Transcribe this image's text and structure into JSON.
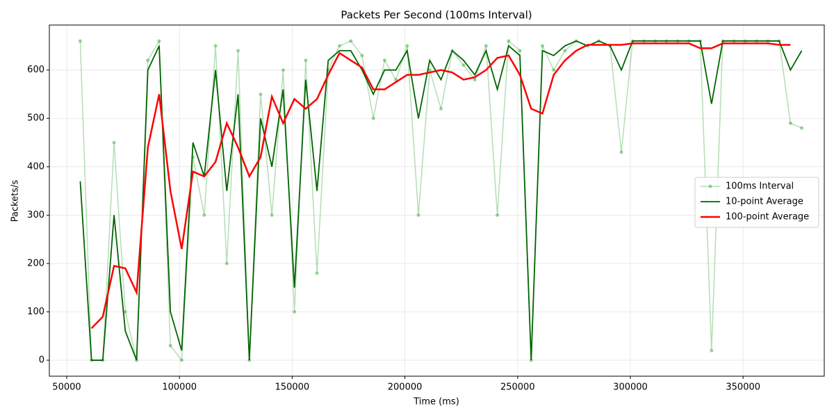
{
  "chart_data": {
    "type": "line",
    "title": "Packets Per Second (100ms Interval)",
    "x_label": "Time (ms)",
    "y_label": "Packets/s",
    "x": [
      56000,
      61000,
      66000,
      71000,
      76000,
      81000,
      86000,
      91000,
      96000,
      101000,
      106000,
      111000,
      116000,
      121000,
      126000,
      131000,
      136000,
      141000,
      146000,
      151000,
      156000,
      161000,
      166000,
      171000,
      176000,
      181000,
      186000,
      191000,
      196000,
      201000,
      206000,
      211000,
      216000,
      221000,
      226000,
      231000,
      236000,
      241000,
      246000,
      251000,
      256000,
      261000,
      266000,
      271000,
      276000,
      281000,
      286000,
      291000,
      296000,
      301000,
      306000,
      311000,
      316000,
      321000,
      326000,
      331000,
      336000,
      341000,
      346000,
      351000,
      356000,
      361000,
      366000,
      371000,
      376000
    ],
    "series": [
      {
        "name": "100ms Interval",
        "color": "#2ca02c",
        "markers": true,
        "values": [
          660,
          0,
          0,
          450,
          100,
          0,
          620,
          660,
          30,
          0,
          420,
          300,
          650,
          200,
          640,
          0,
          550,
          300,
          600,
          100,
          620,
          180,
          600,
          650,
          660,
          630,
          500,
          620,
          580,
          650,
          300,
          600,
          520,
          640,
          610,
          580,
          650,
          300,
          660,
          640,
          0,
          650,
          600,
          640,
          660,
          650,
          660,
          650,
          430,
          660,
          660,
          660,
          660,
          660,
          660,
          660,
          20,
          660,
          660,
          660,
          660,
          660,
          660,
          490,
          480
        ]
      },
      {
        "name": "10-point Average",
        "color": "#006400",
        "markers": false,
        "values": [
          370,
          0,
          0,
          300,
          60,
          0,
          600,
          650,
          100,
          20,
          450,
          380,
          600,
          350,
          550,
          0,
          500,
          400,
          560,
          150,
          580,
          350,
          620,
          640,
          640,
          600,
          550,
          600,
          600,
          640,
          500,
          620,
          580,
          640,
          620,
          590,
          640,
          560,
          650,
          630,
          0,
          640,
          630,
          650,
          660,
          650,
          660,
          650,
          600,
          660,
          660,
          660,
          660,
          660,
          660,
          660,
          530,
          660,
          660,
          660,
          660,
          660,
          660,
          600,
          640
        ]
      },
      {
        "name": "100-point Average",
        "color": "#ff0000",
        "markers": false,
        "values": [
          null,
          66,
          90,
          195,
          190,
          140,
          440,
          550,
          350,
          230,
          390,
          380,
          410,
          490,
          440,
          380,
          420,
          545,
          490,
          540,
          520,
          540,
          590,
          635,
          620,
          605,
          560,
          560,
          575,
          590,
          590,
          595,
          600,
          595,
          580,
          585,
          600,
          625,
          630,
          590,
          520,
          510,
          590,
          620,
          640,
          652,
          652,
          652,
          652,
          655,
          655,
          655,
          655,
          655,
          655,
          645,
          645,
          655,
          655,
          655,
          655,
          655,
          652,
          652,
          null
        ]
      }
    ],
    "xlim": [
      42300,
      386000
    ],
    "ylim": [
      -33,
      693
    ],
    "xticks": [
      50000,
      100000,
      150000,
      200000,
      250000,
      300000,
      350000
    ],
    "yticks": [
      0,
      100,
      200,
      300,
      400,
      500,
      600
    ],
    "grid": true,
    "legend": "right"
  }
}
